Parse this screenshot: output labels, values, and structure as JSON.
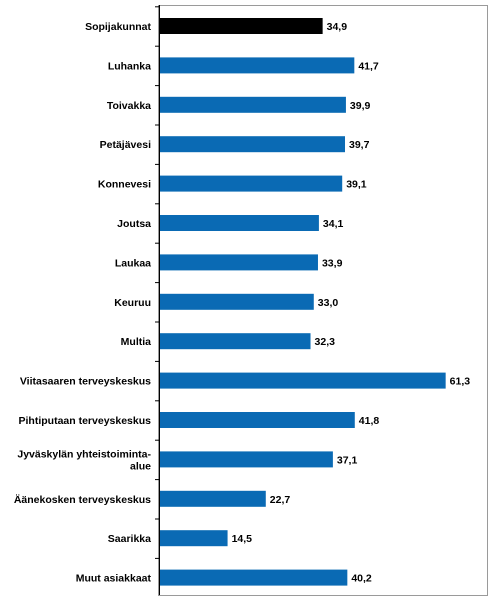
{
  "chart_data": {
    "type": "bar",
    "orientation": "horizontal",
    "categories": [
      [
        "Sopijakunnat"
      ],
      [
        "Luhanka"
      ],
      [
        "Toivakka"
      ],
      [
        "Petäjävesi"
      ],
      [
        "Konnevesi"
      ],
      [
        "Joutsa"
      ],
      [
        "Laukaa"
      ],
      [
        "Keuruu"
      ],
      [
        "Multia"
      ],
      [
        "Viitasaaren terveyskeskus"
      ],
      [
        "Pihtiputaan terveyskeskus"
      ],
      [
        "Jyväskylän yhteistoiminta-",
        "alue"
      ],
      [
        "Äänekosken terveyskeskus"
      ],
      [
        "Saarikka"
      ],
      [
        "Muut asiakkaat"
      ]
    ],
    "values": [
      34.9,
      41.7,
      39.9,
      39.7,
      39.1,
      34.1,
      33.9,
      33.0,
      32.3,
      61.3,
      41.8,
      37.1,
      22.7,
      14.5,
      40.2
    ],
    "value_labels": [
      "34,9",
      "41,7",
      "39,9",
      "39,7",
      "39,1",
      "34,1",
      "33,9",
      "33,0",
      "32,3",
      "61,3",
      "41,8",
      "37,1",
      "22,7",
      "14,5",
      "40,2"
    ],
    "colors": [
      "#000000",
      "#0a6ab4",
      "#0a6ab4",
      "#0a6ab4",
      "#0a6ab4",
      "#0a6ab4",
      "#0a6ab4",
      "#0a6ab4",
      "#0a6ab4",
      "#0a6ab4",
      "#0a6ab4",
      "#0a6ab4",
      "#0a6ab4",
      "#0a6ab4",
      "#0a6ab4"
    ],
    "xlim": [
      0,
      65
    ],
    "grid": false,
    "legend": "none",
    "title": "",
    "xlabel": "",
    "ylabel": ""
  }
}
